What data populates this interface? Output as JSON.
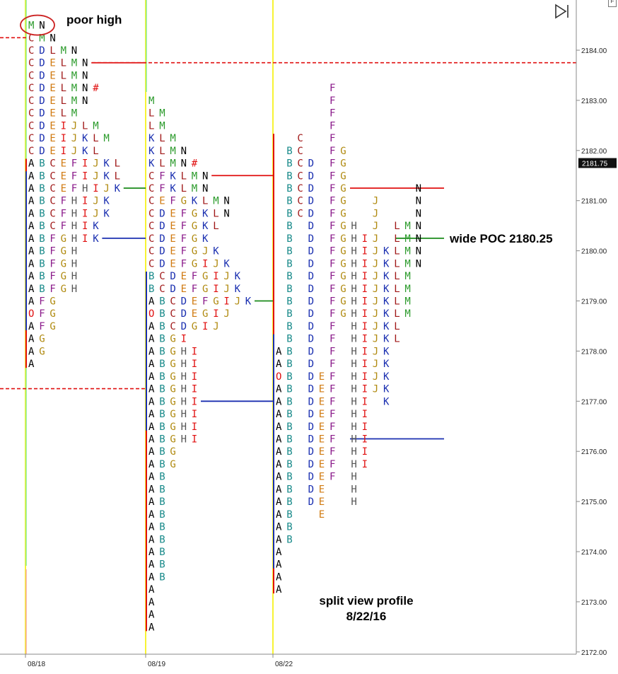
{
  "window": {
    "corner_button": "F",
    "play_icon": "skip-to-end-icon"
  },
  "chart_data": {
    "type": "market-profile",
    "price_axis": {
      "ticks": [
        "2184.00",
        "2183.00",
        "2182.00",
        "2181.00",
        "2180.00",
        "2179.00",
        "2178.00",
        "2177.00",
        "2176.00",
        "2175.00",
        "2174.00",
        "2173.00",
        "2172.00"
      ],
      "tick_step": 0.25,
      "current_price": "2181.75"
    },
    "dates": [
      "08/18",
      "08/19",
      "08/22"
    ],
    "colors": {
      "A": "#000000",
      "B": "#188a8a",
      "C": "#a01818",
      "D": "#1a2fb0",
      "E": "#d07a10",
      "F": "#8a1a8a",
      "G": "#b08a10",
      "H": "#555555",
      "I": "#e01010",
      "J": "#b08a10",
      "K": "#1a2fb0",
      "L": "#a01818",
      "M": "#2a9a2a",
      "N": "#000000",
      "O": "#e01010",
      "#": "#e01010"
    },
    "profiles": [
      {
        "date": "08/18",
        "rows": [
          {
            "price": 2184.5,
            "letters": "MN"
          },
          {
            "price": 2184.25,
            "letters": "CMN"
          },
          {
            "price": 2184.0,
            "letters": "CDLMN"
          },
          {
            "price": 2183.75,
            "letters": "CDELMN"
          },
          {
            "price": 2183.5,
            "letters": "CDELMN"
          },
          {
            "price": 2183.25,
            "letters": "CDELMN#"
          },
          {
            "price": 2183.0,
            "letters": "CDELMN"
          },
          {
            "price": 2182.75,
            "letters": "CDELM"
          },
          {
            "price": 2182.5,
            "letters": "CDEIJLM"
          },
          {
            "price": 2182.25,
            "letters": "CDEIJKLM"
          },
          {
            "price": 2182.0,
            "letters": "CDEIJKL"
          },
          {
            "price": 2181.75,
            "letters": "ABCEFIJKL"
          },
          {
            "price": 2181.5,
            "letters": "ABCEFIJKL"
          },
          {
            "price": 2181.25,
            "letters": "ABCEFHIJK"
          },
          {
            "price": 2181.0,
            "letters": "ABCFHIJK"
          },
          {
            "price": 2180.75,
            "letters": "ABCFHIJK"
          },
          {
            "price": 2180.5,
            "letters": "ABCFHIK"
          },
          {
            "price": 2180.25,
            "letters": "ABFGHIK"
          },
          {
            "price": 2180.0,
            "letters": "ABFGH"
          },
          {
            "price": 2179.75,
            "letters": "ABFGH"
          },
          {
            "price": 2179.5,
            "letters": "ABFGH"
          },
          {
            "price": 2179.25,
            "letters": "ABFGH"
          },
          {
            "price": 2179.0,
            "letters": "AFG"
          },
          {
            "price": 2178.75,
            "letters": "OFG"
          },
          {
            "price": 2178.5,
            "letters": "AFG"
          },
          {
            "price": 2178.25,
            "letters": "AG"
          },
          {
            "price": 2178.0,
            "letters": "AG"
          },
          {
            "price": 2177.75,
            "letters": "A"
          }
        ]
      },
      {
        "date": "08/19",
        "rows": [
          {
            "price": 2183.0,
            "letters": "M"
          },
          {
            "price": 2182.75,
            "letters": "LM"
          },
          {
            "price": 2182.5,
            "letters": "LM"
          },
          {
            "price": 2182.25,
            "letters": "KLM"
          },
          {
            "price": 2182.0,
            "letters": "KLMN"
          },
          {
            "price": 2181.75,
            "letters": "KLMN#"
          },
          {
            "price": 2181.5,
            "letters": "CFKLMN"
          },
          {
            "price": 2181.25,
            "letters": "CFKLMN"
          },
          {
            "price": 2181.0,
            "letters": "CEFGKLMN"
          },
          {
            "price": 2180.75,
            "letters": "CDEFGKLN"
          },
          {
            "price": 2180.5,
            "letters": "CDEFGKL"
          },
          {
            "price": 2180.25,
            "letters": "CDEFGK"
          },
          {
            "price": 2180.0,
            "letters": "CDEFGJK"
          },
          {
            "price": 2179.75,
            "letters": "CDEFGIJK"
          },
          {
            "price": 2179.5,
            "letters": "BCDEFGIJK"
          },
          {
            "price": 2179.25,
            "letters": "BCDEFGIJK"
          },
          {
            "price": 2179.0,
            "letters": "ABCDEFGIJK"
          },
          {
            "price": 2178.75,
            "letters": "OBCDEGIJ"
          },
          {
            "price": 2178.5,
            "letters": "ABCDGIJ"
          },
          {
            "price": 2178.25,
            "letters": "ABGI"
          },
          {
            "price": 2178.0,
            "letters": "ABGHI"
          },
          {
            "price": 2177.75,
            "letters": "ABGHI"
          },
          {
            "price": 2177.5,
            "letters": "ABGHI"
          },
          {
            "price": 2177.25,
            "letters": "ABGHI"
          },
          {
            "price": 2177.0,
            "letters": "ABGHI"
          },
          {
            "price": 2176.75,
            "letters": "ABGHI"
          },
          {
            "price": 2176.5,
            "letters": "ABGHI"
          },
          {
            "price": 2176.25,
            "letters": "ABGHI"
          },
          {
            "price": 2176.0,
            "letters": "ABG"
          },
          {
            "price": 2175.75,
            "letters": "ABG"
          },
          {
            "price": 2175.5,
            "letters": "AB"
          },
          {
            "price": 2175.25,
            "letters": "AB"
          },
          {
            "price": 2175.0,
            "letters": "AB"
          },
          {
            "price": 2174.75,
            "letters": "AB"
          },
          {
            "price": 2174.5,
            "letters": "AB"
          },
          {
            "price": 2174.25,
            "letters": "AB"
          },
          {
            "price": 2174.0,
            "letters": "AB"
          },
          {
            "price": 2173.75,
            "letters": "AB"
          },
          {
            "price": 2173.5,
            "letters": "AB"
          },
          {
            "price": 2173.25,
            "letters": "A"
          },
          {
            "price": 2173.0,
            "letters": "A"
          },
          {
            "price": 2172.75,
            "letters": "A"
          },
          {
            "price": 2172.5,
            "letters": "A"
          }
        ]
      },
      {
        "date": "08/22",
        "split": true,
        "columns": [
          "A",
          "B",
          "C",
          "D",
          "E",
          "F",
          "G",
          "H",
          "I",
          "J",
          "K",
          "L",
          "M",
          "N"
        ],
        "rows": [
          {
            "price": 2183.25,
            "letters": "F"
          },
          {
            "price": 2183.0,
            "letters": "F"
          },
          {
            "price": 2182.75,
            "letters": "F"
          },
          {
            "price": 2182.5,
            "letters": "F"
          },
          {
            "price": 2182.25,
            "letters": "CF"
          },
          {
            "price": 2182.0,
            "letters": "BCFG"
          },
          {
            "price": 2181.75,
            "letters": "BCDFG"
          },
          {
            "price": 2181.5,
            "letters": "BCDFG"
          },
          {
            "price": 2181.25,
            "letters": "BCDFGN"
          },
          {
            "price": 2181.0,
            "letters": "BCDFGJN"
          },
          {
            "price": 2180.75,
            "letters": "BCDFGJN"
          },
          {
            "price": 2180.5,
            "letters": "BDFGHJLMN"
          },
          {
            "price": 2180.25,
            "letters": "BDFGHIJLMN"
          },
          {
            "price": 2180.0,
            "letters": "BDFGHIJKLMN"
          },
          {
            "price": 2179.75,
            "letters": "BDFGHIJKLMN"
          },
          {
            "price": 2179.5,
            "letters": "BDFGHIJKLM"
          },
          {
            "price": 2179.25,
            "letters": "BDFGHIJKLM"
          },
          {
            "price": 2179.0,
            "letters": "BDFGHIJKLM"
          },
          {
            "price": 2178.75,
            "letters": "BDFGHIJKLM"
          },
          {
            "price": 2178.5,
            "letters": "BDFHIJKL"
          },
          {
            "price": 2178.25,
            "letters": "BDFHIJKL"
          },
          {
            "price": 2178.0,
            "letters": "ABDFHIJK"
          },
          {
            "price": 2177.75,
            "letters": "ABDFHIJK"
          },
          {
            "price": 2177.5,
            "letters": "OBDEFHIJK"
          },
          {
            "price": 2177.25,
            "letters": "ABDEFHIJK"
          },
          {
            "price": 2177.0,
            "letters": "ABDEFHIK"
          },
          {
            "price": 2176.75,
            "letters": "ABDEFHI"
          },
          {
            "price": 2176.5,
            "letters": "ABDEFHI"
          },
          {
            "price": 2176.25,
            "letters": "ABDEFHI"
          },
          {
            "price": 2176.0,
            "letters": "ABDEFHI"
          },
          {
            "price": 2175.75,
            "letters": "ABDEFHI"
          },
          {
            "price": 2175.5,
            "letters": "ABDEFH"
          },
          {
            "price": 2175.25,
            "letters": "ABDEH"
          },
          {
            "price": 2175.0,
            "letters": "ABDEH"
          },
          {
            "price": 2174.75,
            "letters": "ABE"
          },
          {
            "price": 2174.5,
            "letters": "AB"
          },
          {
            "price": 2174.25,
            "letters": "AB"
          },
          {
            "price": 2174.0,
            "letters": "A"
          },
          {
            "price": 2173.75,
            "letters": "A"
          },
          {
            "price": 2173.5,
            "letters": "A"
          },
          {
            "price": 2173.25,
            "letters": "A"
          }
        ]
      }
    ],
    "reference_lines": [
      {
        "profile": 0,
        "kind": "poc",
        "price": 2180.25,
        "color": "#1a2fb0",
        "style": "solid",
        "extend": "to-next-profile"
      },
      {
        "profile": 0,
        "kind": "va-high",
        "price": 2181.25,
        "color": "#1a8a1a",
        "style": "solid",
        "extend": "to-next-profile"
      },
      {
        "profile": 0,
        "kind": "high-ref",
        "price": 2183.75,
        "color": "#e01010",
        "style": "solid",
        "extend": "to-next-profile"
      },
      {
        "profile": 1,
        "kind": "poc",
        "price": 2177.0,
        "color": "#1a2fb0",
        "style": "solid",
        "extend": "to-next-profile"
      },
      {
        "profile": 1,
        "kind": "va-high",
        "price": 2179.0,
        "color": "#1a8a1a",
        "style": "solid",
        "extend": "to-next-profile"
      },
      {
        "profile": 1,
        "kind": "high-ref",
        "price": 2181.5,
        "color": "#e01010",
        "style": "solid",
        "extend": "to-next-profile"
      },
      {
        "profile": 2,
        "kind": "poc",
        "price": 2180.25,
        "color": "#1a8a1a",
        "style": "solid",
        "extend": "short"
      },
      {
        "profile": 2,
        "kind": "high-ref",
        "price": 2181.25,
        "color": "#e01010",
        "style": "solid",
        "extend": "short"
      },
      {
        "profile": 2,
        "kind": "low-ref",
        "price": 2176.25,
        "color": "#1a2fb0",
        "style": "solid",
        "extend": "short"
      }
    ],
    "dashed_lines": [
      {
        "price": 2184.25,
        "color": "#e01010",
        "span": "left-stub"
      },
      {
        "price": 2183.75,
        "color": "#e01010",
        "span": "full"
      },
      {
        "price": 2177.25,
        "color": "#e01010",
        "span": "left-segment"
      }
    ],
    "annotations": [
      {
        "text": "poor high",
        "anchor_price": 2184.5,
        "anchor_profile": 0
      },
      {
        "text": "wide POC 2180.25",
        "anchor_price": 2180.25,
        "anchor_profile": 2
      }
    ],
    "caption": [
      "split view profile",
      "8/22/16"
    ]
  }
}
